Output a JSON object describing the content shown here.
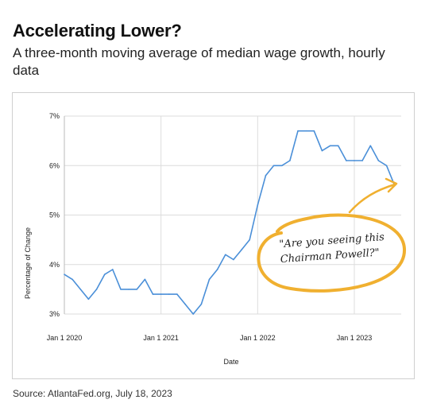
{
  "title": "Accelerating Lower?",
  "subtitle": "A three-month moving average of median wage growth, hourly data",
  "source": "Source: AtlantaFed.org, July 18, 2023",
  "annotation": {
    "line1": "\"Are you seeing this",
    "line2": "Chairman Powell?\"",
    "color": "#f0b030"
  },
  "colors": {
    "line": "#4a8fd8",
    "grid": "#dcdcdc"
  },
  "chart_data": {
    "type": "line",
    "xlabel": "Date",
    "ylabel": "Percentage of Change",
    "ylim": [
      3,
      7
    ],
    "yticks": [
      "3%",
      "4%",
      "5%",
      "6%",
      "7%"
    ],
    "xticks": [
      "Jan 1 2020",
      "Jan 1 2021",
      "Jan 1 2022",
      "Jan 1 2023"
    ],
    "grid": true,
    "x": [
      "2020-01",
      "2020-02",
      "2020-03",
      "2020-04",
      "2020-05",
      "2020-06",
      "2020-07",
      "2020-08",
      "2020-09",
      "2020-10",
      "2020-11",
      "2020-12",
      "2021-01",
      "2021-02",
      "2021-03",
      "2021-04",
      "2021-05",
      "2021-06",
      "2021-07",
      "2021-08",
      "2021-09",
      "2021-10",
      "2021-11",
      "2021-12",
      "2022-01",
      "2022-02",
      "2022-03",
      "2022-04",
      "2022-05",
      "2022-06",
      "2022-07",
      "2022-08",
      "2022-09",
      "2022-10",
      "2022-11",
      "2022-12",
      "2023-01",
      "2023-02",
      "2023-03",
      "2023-04",
      "2023-05",
      "2023-06"
    ],
    "series": [
      {
        "values": [
          3.8,
          3.7,
          3.5,
          3.3,
          3.5,
          3.8,
          3.9,
          3.5,
          3.5,
          3.5,
          3.7,
          3.4,
          3.4,
          3.4,
          3.4,
          3.2,
          3.0,
          3.2,
          3.7,
          3.9,
          4.2,
          4.1,
          4.3,
          4.5,
          5.2,
          5.8,
          6.0,
          6.0,
          6.1,
          6.7,
          6.7,
          6.7,
          6.3,
          6.4,
          6.4,
          6.1,
          6.1,
          6.1,
          6.4,
          6.1,
          6.0,
          5.6
        ]
      }
    ]
  }
}
